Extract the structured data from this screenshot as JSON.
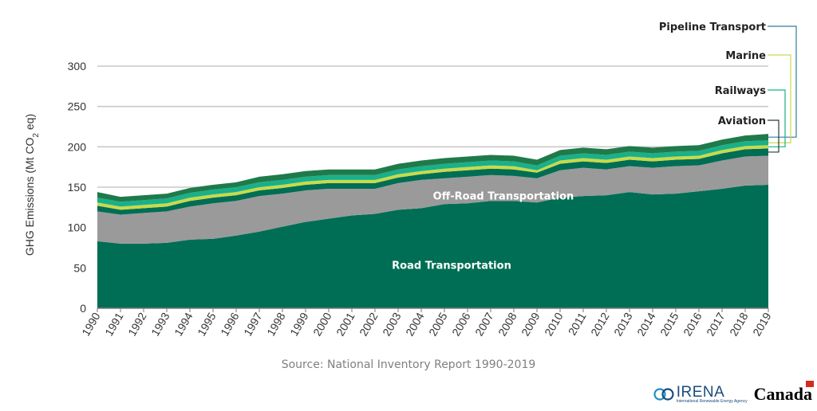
{
  "chart_data": {
    "type": "area",
    "stacked": true,
    "ylabel": "GHG Emissions (Mt CO2 eq)",
    "ylim": [
      0,
      300
    ],
    "yticks": [
      0,
      50,
      100,
      150,
      200,
      250,
      300
    ],
    "grid": true,
    "x": [
      "1990",
      "1991",
      "1992",
      "1993",
      "1994",
      "1995",
      "1996",
      "1997",
      "1998",
      "1999",
      "2000",
      "2001",
      "2002",
      "2003",
      "2004",
      "2005",
      "2006",
      "2007",
      "2008",
      "2009",
      "2010",
      "2011",
      "2012",
      "2013",
      "2014",
      "2015",
      "2016",
      "2017",
      "2018",
      "2019"
    ],
    "series": [
      {
        "name": "Road Transportation",
        "color": "#006e54",
        "values": [
          83,
          80,
          80,
          81,
          85,
          86,
          90,
          95,
          101,
          107,
          111,
          115,
          117,
          122,
          124,
          129,
          130,
          133,
          133,
          131,
          137,
          139,
          140,
          144,
          141,
          142,
          145,
          148,
          152,
          153
        ]
      },
      {
        "name": "Off-Road Transportation",
        "color": "#9a9a9a",
        "values": [
          37,
          36,
          38,
          39,
          41,
          44,
          43,
          44,
          41,
          39,
          37,
          33,
          31,
          33,
          35,
          32,
          33,
          32,
          31,
          30,
          34,
          35,
          32,
          32,
          33,
          34,
          32,
          35,
          36,
          36
        ]
      },
      {
        "name": "Aviation",
        "color": "#006e54",
        "values": [
          7,
          6,
          6,
          6,
          7,
          7,
          7,
          7,
          7,
          7,
          7,
          7,
          7,
          7,
          7,
          8,
          8,
          8,
          8,
          7,
          8,
          8,
          8,
          8,
          8,
          8,
          8,
          9,
          9,
          9
        ]
      },
      {
        "name": "Railways",
        "color": "#c8da4a",
        "values": [
          4,
          4,
          4,
          4,
          4,
          4,
          4,
          4,
          4,
          4,
          4,
          4,
          4,
          4,
          4,
          4,
          4,
          4,
          4,
          3,
          4,
          4,
          4,
          4,
          4,
          4,
          4,
          4,
          4,
          4
        ]
      },
      {
        "name": "Marine",
        "color": "#19b08a",
        "values": [
          6,
          6,
          6,
          6,
          6,
          6,
          6,
          6,
          6,
          6,
          6,
          6,
          6,
          6,
          6,
          6,
          6,
          6,
          6,
          6,
          6,
          6,
          6,
          6,
          6,
          6,
          6,
          6,
          6,
          6
        ]
      },
      {
        "name": "Pipeline Transport",
        "color": "#1f7a4a",
        "values": [
          7,
          6,
          6,
          6,
          6,
          6,
          6,
          7,
          7,
          7,
          7,
          7,
          7,
          7,
          7,
          7,
          7,
          7,
          7,
          7,
          7,
          7,
          7,
          7,
          7,
          7,
          7,
          7,
          7,
          8
        ]
      }
    ],
    "annotations": {
      "inside": [
        {
          "series": "Road Transportation",
          "text": "Road Transportation"
        },
        {
          "series": "Off-Road Transportation",
          "text": "Off-Road Transportation"
        }
      ],
      "callouts": [
        {
          "series": "Pipeline Transport",
          "text": "Pipeline Transport",
          "line_color": "#2e7d9a"
        },
        {
          "series": "Marine",
          "text": "Marine",
          "line_color": "#c8da4a"
        },
        {
          "series": "Railways",
          "text": "Railways",
          "line_color": "#19b08a"
        },
        {
          "series": "Aviation",
          "text": "Aviation",
          "line_color": "#2a3a3a"
        }
      ]
    }
  },
  "source": "Source: National Inventory Report 1990-2019",
  "logos": {
    "irena_name": "IRENA",
    "irena_subtitle": "International Renewable Energy Agency",
    "canada": "Canada"
  }
}
